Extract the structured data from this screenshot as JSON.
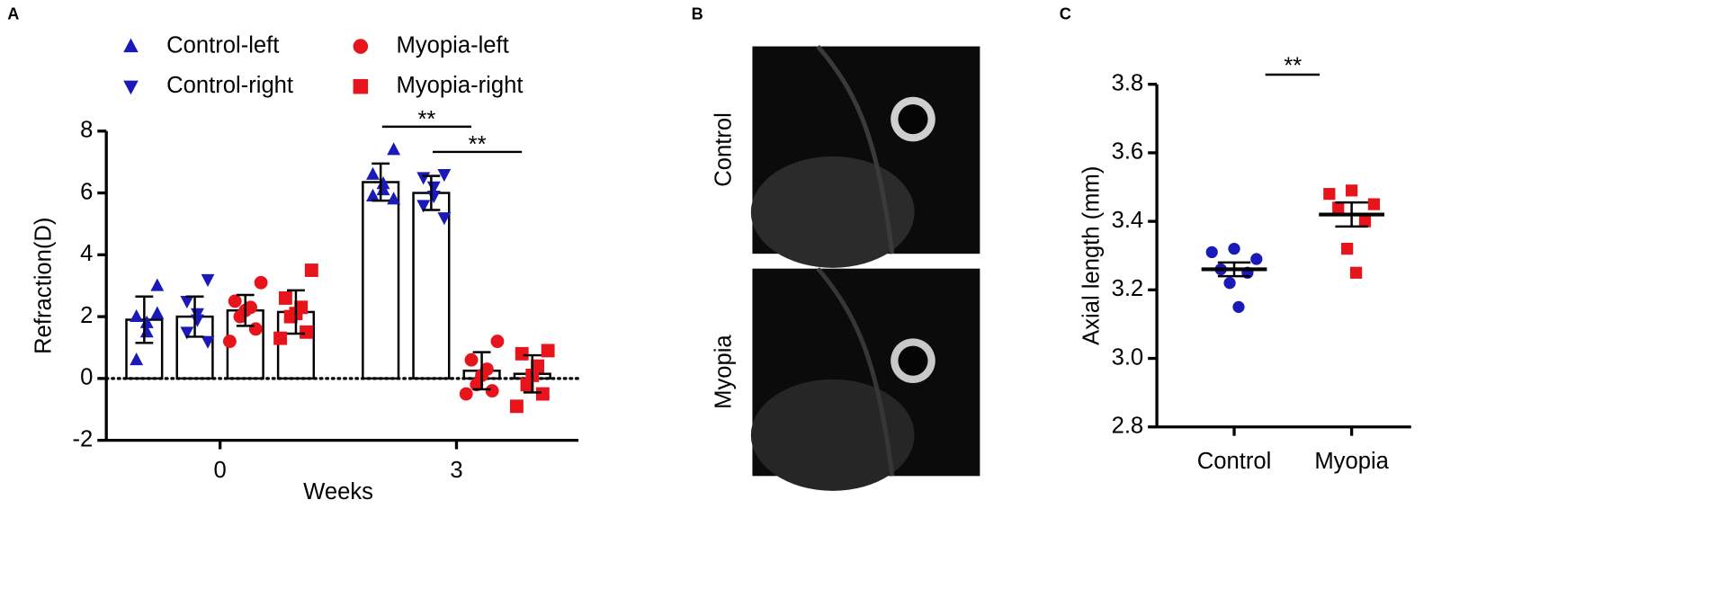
{
  "panel_labels": [
    "A",
    "B",
    "C"
  ],
  "mri_labels": [
    "Control",
    "Myopia"
  ],
  "chart_data": [
    {
      "type": "bar",
      "categories": [
        "0",
        "3"
      ],
      "x_label": "Weeks",
      "y_label": "Refraction(D)",
      "ylim": [
        -2,
        8
      ],
      "yticks": [
        -2,
        0,
        2,
        4,
        6,
        8
      ],
      "annotations": [
        "**",
        "**"
      ],
      "series": [
        {
          "name": "Control-left",
          "color": "#1a1ab8",
          "marker": "triangle-up",
          "values": [
            1.9,
            6.35
          ],
          "errors": [
            0.75,
            0.6
          ],
          "points": [
            [
              3.0,
              2.0,
              1.8,
              1.5,
              0.6,
              2.1
            ],
            [
              7.4,
              6.6,
              6.3,
              6.1,
              5.9,
              5.8
            ]
          ]
        },
        {
          "name": "Control-right",
          "color": "#1a1ab8",
          "marker": "triangle-down",
          "values": [
            2.0,
            6.0
          ],
          "errors": [
            0.65,
            0.55
          ],
          "points": [
            [
              3.2,
              2.5,
              2.1,
              1.9,
              1.5,
              1.2
            ],
            [
              6.6,
              6.5,
              6.2,
              5.9,
              5.6,
              5.2
            ]
          ]
        },
        {
          "name": "Myopia-left",
          "color": "#e8141b",
          "marker": "circle",
          "values": [
            2.2,
            0.25
          ],
          "errors": [
            0.5,
            0.6
          ],
          "points": [
            [
              3.1,
              2.5,
              2.3,
              2.2,
              2.0,
              1.6,
              1.2
            ],
            [
              1.2,
              0.6,
              0.3,
              0.1,
              -0.2,
              -0.4,
              -0.5
            ]
          ]
        },
        {
          "name": "Myopia-right",
          "color": "#e8141b",
          "marker": "square",
          "values": [
            2.15,
            0.15
          ],
          "errors": [
            0.7,
            0.6
          ],
          "points": [
            [
              3.5,
              2.6,
              2.3,
              2.1,
              2.0,
              1.5,
              1.3
            ],
            [
              0.9,
              0.8,
              0.4,
              0.1,
              -0.2,
              -0.5,
              -0.9
            ]
          ]
        }
      ]
    },
    {
      "type": "dot",
      "categories": [
        "Control",
        "Myopia"
      ],
      "colors": [
        "#1a1ab8",
        "#e8141b"
      ],
      "markers": [
        "circle",
        "square"
      ],
      "y_label": "Axial length (mm)",
      "ylim": [
        2.8,
        3.8
      ],
      "yticks": [
        2.8,
        {
          "value": 3,
          "label": "3.0"
        },
        3.2,
        3.4,
        3.6,
        3.8
      ],
      "annotations": [
        "**"
      ],
      "points": [
        [
          3.31,
          3.32,
          3.29,
          3.26,
          3.25,
          3.22,
          3.15
        ],
        [
          3.48,
          3.49,
          3.45,
          3.44,
          3.4,
          3.32,
          3.25
        ]
      ],
      "means": [
        3.26,
        3.42
      ],
      "errors": [
        0.02,
        0.035
      ]
    }
  ]
}
